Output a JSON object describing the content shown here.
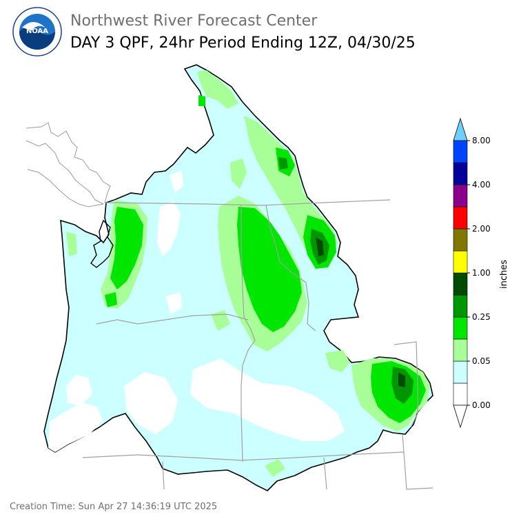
{
  "header": {
    "agency": "Northwest River Forecast Center",
    "product": "DAY 3 QPF, 24hr Period Ending 12Z, 04/30/25",
    "logo_text": "NOAA"
  },
  "legend": {
    "unit_label": "inches",
    "bins": [
      {
        "label": "0.00",
        "color": "#ffffff"
      },
      {
        "label": "",
        "color": "#ccffff"
      },
      {
        "label": "0.05",
        "color": "#a8ff98"
      },
      {
        "label": "",
        "color": "#00e600"
      },
      {
        "label": "0.25",
        "color": "#009600"
      },
      {
        "label": "",
        "color": "#004b00"
      },
      {
        "label": "1.00",
        "color": "#ffff00"
      },
      {
        "label": "",
        "color": "#807800"
      },
      {
        "label": "2.00",
        "color": "#ff0000"
      },
      {
        "label": "",
        "color": "#8b008b"
      },
      {
        "label": "4.00",
        "color": "#00009b"
      },
      {
        "label": "",
        "color": "#0044ff"
      },
      {
        "label": "8.00",
        "color": "#6fd0ff"
      }
    ]
  },
  "footer": {
    "creation_time": "Creation Time: Sun Apr 27 14:36:19 UTC 2025"
  }
}
